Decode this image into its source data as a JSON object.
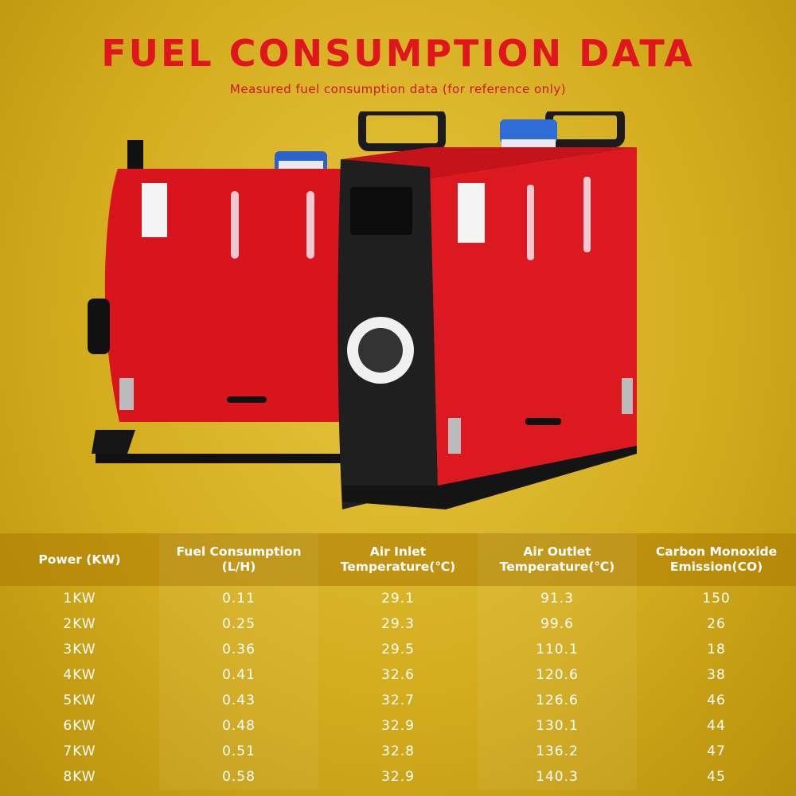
{
  "header": {
    "title": "FUEL CONSUMPTION DATA",
    "subtitle": "Measured fuel consumption data (for reference only)"
  },
  "table": {
    "headers": [
      [
        "Power (KW)"
      ],
      [
        "Fuel Consumption",
        "(L/H)"
      ],
      [
        "Air Inlet",
        "Temperature(℃)"
      ],
      [
        "Air Outlet",
        "Temperature(℃)"
      ],
      [
        "Carbon Monoxide",
        "Emission(CO)"
      ]
    ],
    "rows": [
      [
        "1KW",
        "0.11",
        "29.1",
        "91.3",
        "150"
      ],
      [
        "2KW",
        "0.25",
        "29.3",
        "99.6",
        "26"
      ],
      [
        "3KW",
        "0.36",
        "29.5",
        "110.1",
        "18"
      ],
      [
        "4KW",
        "0.41",
        "32.6",
        "120.6",
        "38"
      ],
      [
        "5KW",
        "0.43",
        "32.7",
        "126.6",
        "46"
      ],
      [
        "6KW",
        "0.48",
        "32.9",
        "130.1",
        "44"
      ],
      [
        "7KW",
        "0.51",
        "32.8",
        "136.2",
        "47"
      ],
      [
        "8KW",
        "0.58",
        "32.9",
        "140.3",
        "45"
      ]
    ]
  }
}
